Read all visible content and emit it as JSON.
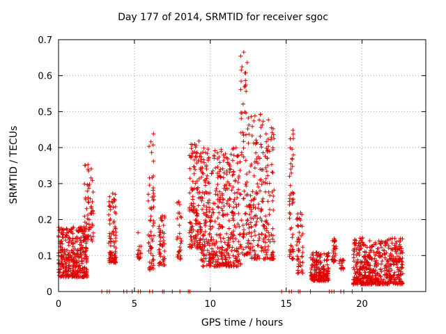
{
  "chart_data": {
    "type": "scatter",
    "title": "Day 177 of 2014, SRMTID for receiver sgoc",
    "xlabel": "GPS time / hours",
    "ylabel": "SRMTID / TECUs",
    "xlim": [
      0,
      24.2
    ],
    "ylim": [
      0,
      0.7
    ],
    "xticks": [
      0,
      5,
      10,
      15,
      20
    ],
    "yticks": [
      0,
      0.1,
      0.2,
      0.3,
      0.4,
      0.5,
      0.6,
      0.7
    ],
    "grid": true,
    "marker": "+",
    "series": [
      {
        "name": "SRMTID",
        "color": "#e00000",
        "clusters": [
          {
            "t0": 0.0,
            "t1": 1.9,
            "lo": 0.04,
            "hi": 0.18,
            "n": 340
          },
          {
            "t0": 1.7,
            "t1": 2.3,
            "lo": 0.14,
            "hi": 0.36,
            "n": 60
          },
          {
            "t0": 3.3,
            "t1": 3.8,
            "lo": 0.08,
            "hi": 0.28,
            "n": 90
          },
          {
            "t0": 5.2,
            "t1": 5.45,
            "lo": 0.09,
            "hi": 0.17,
            "n": 15
          },
          {
            "t0": 5.9,
            "t1": 6.3,
            "lo": 0.06,
            "hi": 0.44,
            "n": 60
          },
          {
            "t0": 6.6,
            "t1": 7.0,
            "lo": 0.07,
            "hi": 0.22,
            "n": 50
          },
          {
            "t0": 7.8,
            "t1": 8.1,
            "lo": 0.09,
            "hi": 0.25,
            "n": 30
          },
          {
            "t0": 8.6,
            "t1": 9.4,
            "lo": 0.12,
            "hi": 0.42,
            "n": 140
          },
          {
            "t0": 9.4,
            "t1": 12.0,
            "lo": 0.07,
            "hi": 0.4,
            "n": 420
          },
          {
            "t0": 12.0,
            "t1": 12.5,
            "lo": 0.1,
            "hi": 0.7,
            "n": 70
          },
          {
            "t0": 12.5,
            "t1": 14.2,
            "lo": 0.09,
            "hi": 0.5,
            "n": 230
          },
          {
            "t0": 15.2,
            "t1": 15.5,
            "lo": 0.09,
            "hi": 0.46,
            "n": 50
          },
          {
            "t0": 15.7,
            "t1": 16.1,
            "lo": 0.05,
            "hi": 0.22,
            "n": 50
          },
          {
            "t0": 16.6,
            "t1": 17.8,
            "lo": 0.03,
            "hi": 0.11,
            "n": 180
          },
          {
            "t0": 18.0,
            "t1": 18.3,
            "lo": 0.08,
            "hi": 0.15,
            "n": 30
          },
          {
            "t0": 18.5,
            "t1": 18.8,
            "lo": 0.06,
            "hi": 0.09,
            "n": 15
          },
          {
            "t0": 19.4,
            "t1": 22.7,
            "lo": 0.02,
            "hi": 0.15,
            "n": 520
          }
        ],
        "zero_points": [
          2.85,
          3.2,
          3.35,
          4.3,
          4.5,
          4.85,
          5.25,
          5.4,
          6.0,
          6.2,
          6.85,
          6.95,
          7.5,
          8.0,
          8.55,
          8.65,
          14.7,
          15.2,
          15.35,
          15.8,
          15.9,
          16.6,
          17.85,
          18.0,
          18.15,
          18.6,
          18.8,
          19.35
        ]
      }
    ]
  }
}
